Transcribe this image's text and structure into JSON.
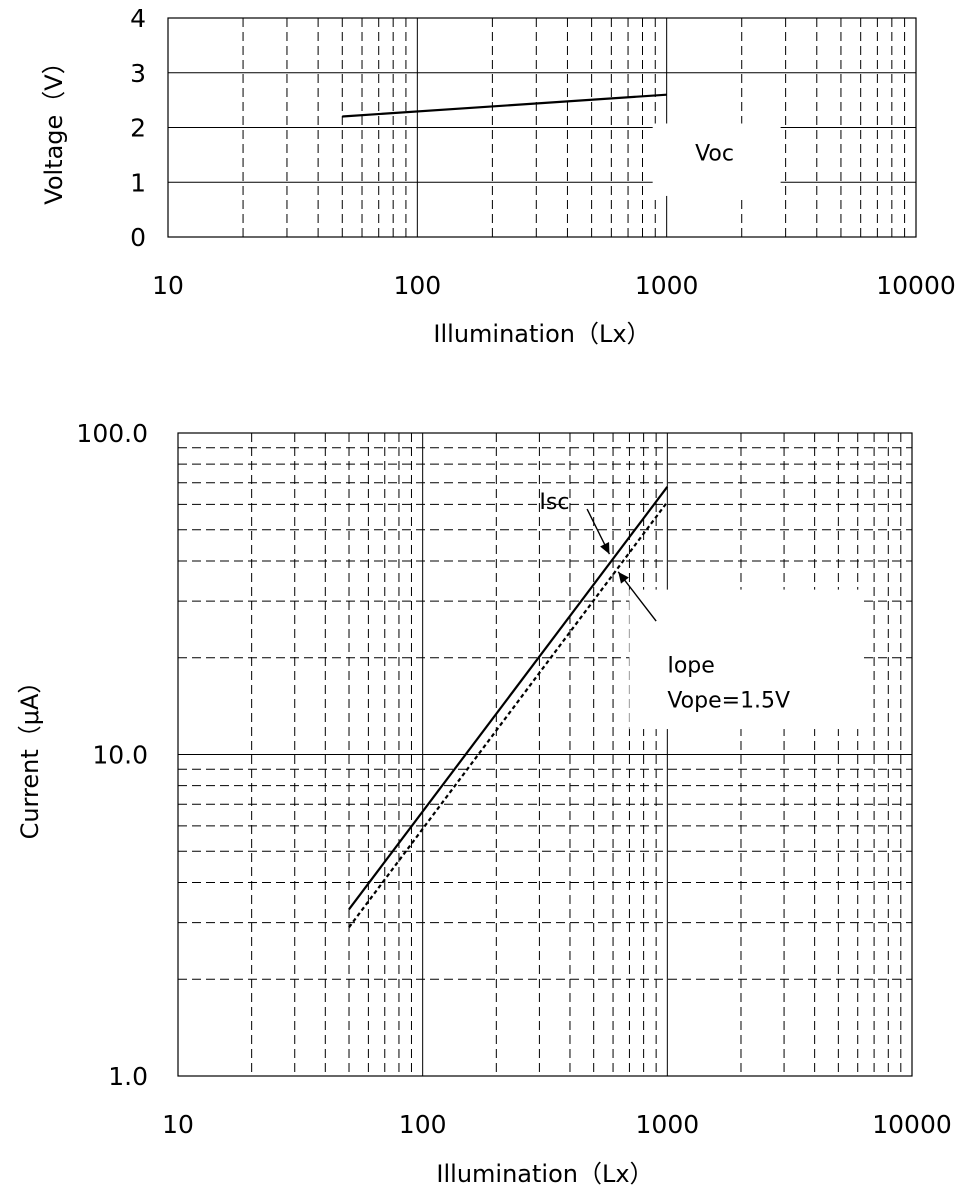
{
  "chart_data": [
    {
      "type": "line",
      "xscale": "log",
      "xlim": [
        10,
        10000
      ],
      "ylim": [
        0,
        4
      ],
      "xticks": [
        "10",
        "100",
        "1000",
        "10000"
      ],
      "yticks": [
        "0",
        "1",
        "2",
        "3",
        "4"
      ],
      "xlabel": "Illumination（Lx）",
      "ylabel": "Voltage（V）",
      "grid": true,
      "series": [
        {
          "name": "Voc",
          "style": "solid",
          "x": [
            50,
            1000
          ],
          "y": [
            2.2,
            2.6
          ]
        }
      ],
      "annotations": [
        {
          "text": "Voc",
          "x": 1300,
          "y": 1.4
        }
      ]
    },
    {
      "type": "line",
      "xscale": "log",
      "yscale": "log",
      "xlim": [
        10,
        10000
      ],
      "ylim": [
        1,
        100
      ],
      "xticks": [
        "10",
        "100",
        "1000",
        "10000"
      ],
      "yticks": [
        "1.0",
        "10.0",
        "100.0"
      ],
      "xlabel": "Illumination（Lx）",
      "ylabel": "Current（μA）",
      "grid": true,
      "series": [
        {
          "name": "Isc",
          "style": "solid",
          "x": [
            50,
            1000
          ],
          "y": [
            3.3,
            68
          ]
        },
        {
          "name": "Iope",
          "style": "dotted",
          "x": [
            50,
            1000
          ],
          "y": [
            2.9,
            61
          ]
        }
      ],
      "annotations": [
        {
          "text": "Isc",
          "x": 300,
          "y": 58
        },
        {
          "text": "Iope",
          "x": 1000,
          "y": 18
        },
        {
          "text": "Vope=1.5V",
          "x": 1000,
          "y": 14
        }
      ]
    }
  ]
}
